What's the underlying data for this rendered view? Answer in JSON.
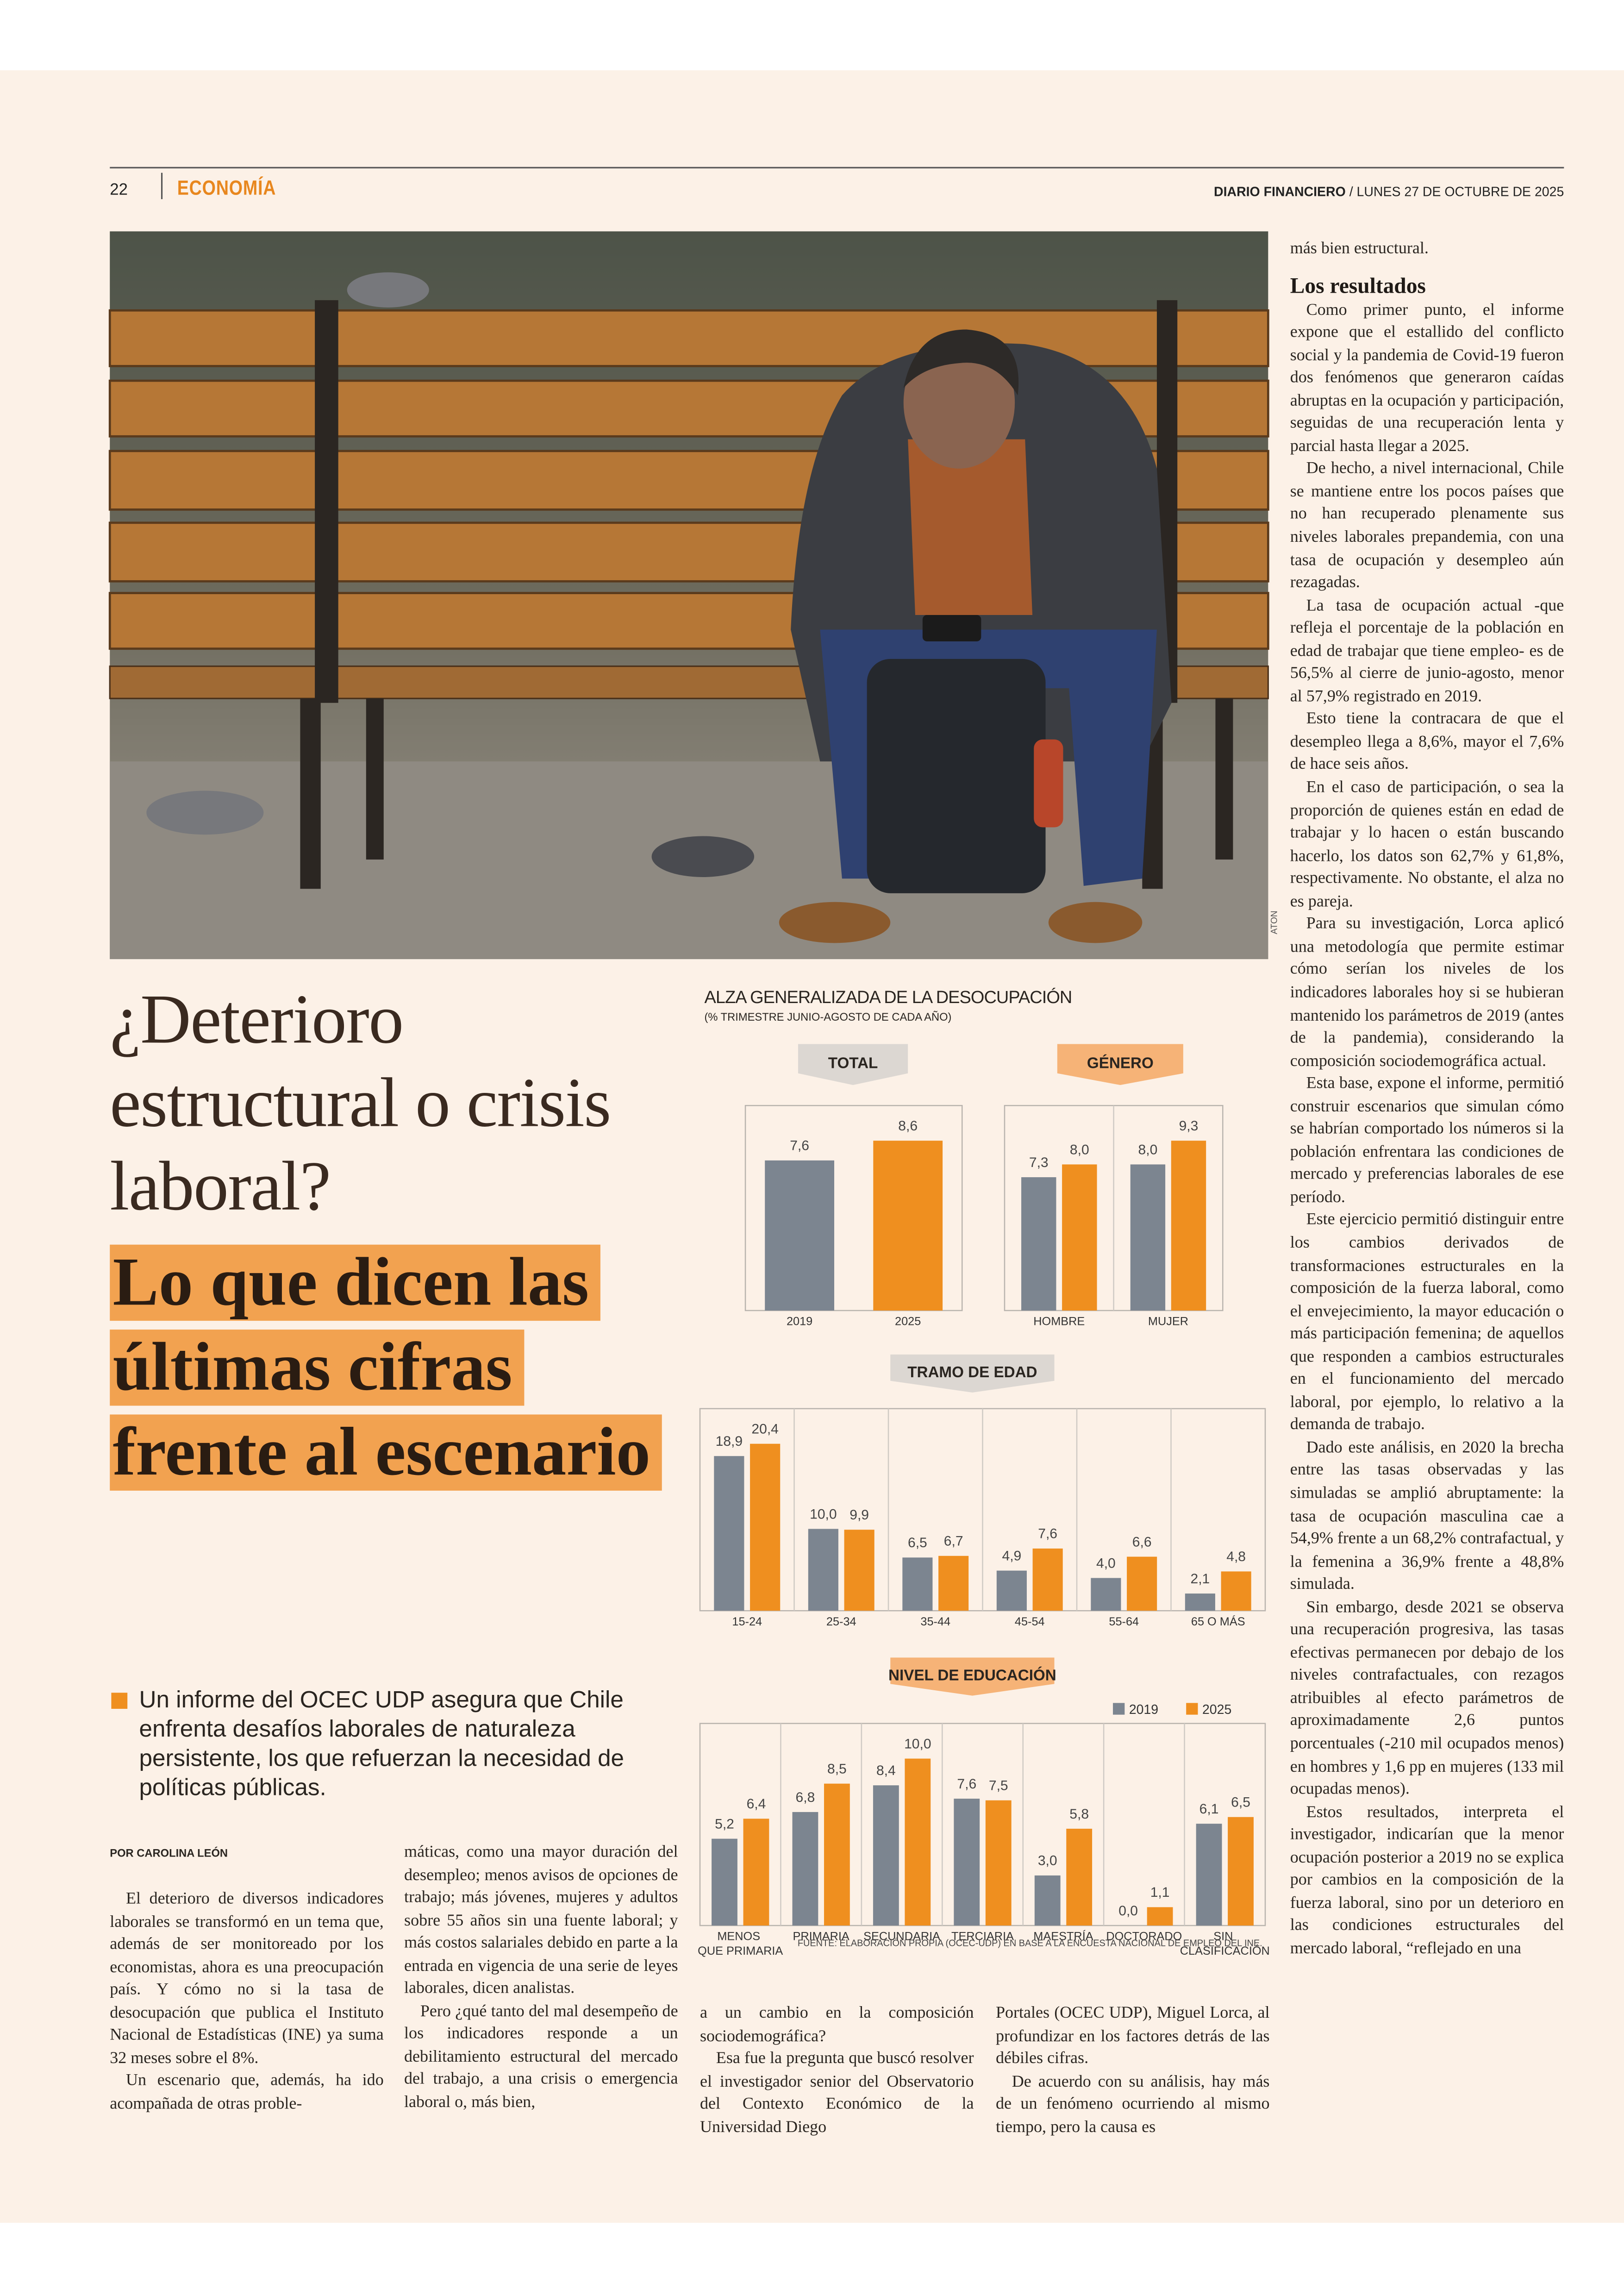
{
  "header": {
    "page": "22",
    "section": "ECONOMÍA",
    "publication": "DIARIO FINANCIERO",
    "date": "/ LUNES 27 DE OCTUBRE DE 2025"
  },
  "photo_credit": "ATON",
  "headline": {
    "question": "¿Deterioro estructural o crisis laboral?",
    "highlight": "Lo que dicen las últimas cifras frente al escenario"
  },
  "summary": "Un informe del OCEC UDP asegura que Chile enfrenta desafíos laborales de naturaleza persistente, los que refuerzan la necesidad de políticas públicas.",
  "byline": "POR CAROLINA LEÓN",
  "body": {
    "columns": [
      {
        "paragraphs": [
          "El deterioro de diversos indicadores laborales se transformó en un tema que, además de ser monitoreado por los economistas, ahora es una preocupación país. Y cómo no si la tasa de desocupación que publica el Instituto Nacional de Estadísticas (INE) ya suma 32 meses sobre el 8%.",
          "Un escenario que, además, ha ido acompañada de otras proble-"
        ]
      },
      {
        "continued": "máticas, como una mayor duración del desempleo; menos avisos de opciones de trabajo; más jóvenes, mujeres y adultos sobre 55 años sin una fuente laboral; y más costos salariales debido en parte a la entrada en vigencia de una serie de leyes laborales, dicen analistas.",
        "paragraphs": [
          "Pero ¿qué tanto del mal desempeño de los indicadores responde a un debilitamiento estructural del mercado del trabajo, a una crisis o emergencia laboral o, más bien,"
        ]
      },
      {
        "continued": "a un cambio en la composición sociodemográfica?",
        "paragraphs": [
          "Esa fue la pregunta que buscó resolver el investigador senior del Observatorio del Contexto Económico de la Universidad Diego"
        ]
      },
      {
        "continued": "Portales (OCEC UDP), Miguel Lorca, al profundizar en los factores detrás de las débiles cifras.",
        "paragraphs": [
          "De acuerdo con su análisis, hay más de un fenómeno ocurriendo al mismo tiempo, pero la causa es"
        ]
      },
      {
        "continued": "más bien estructural.",
        "heading": "Los resultados",
        "paragraphs": [
          "Como primer punto, el informe expone que el estallido del conflicto social y la pandemia de Covid-19 fueron dos fenómenos que generaron caídas abruptas en la ocupación y participación, seguidas de una recuperación lenta y parcial hasta llegar a 2025.",
          "De hecho, a nivel internacional, Chile se mantiene entre los pocos países que no han recuperado plenamente sus niveles laborales prepandemia, con una tasa de ocupación y desempleo aún rezagadas.",
          "La tasa de ocupación actual -que refleja el porcentaje de la población en edad de trabajar que tiene empleo- es de 56,5% al cierre de junio-agosto, menor al 57,9% registrado en 2019.",
          "Esto tiene la contracara de que el desempleo llega a 8,6%, mayor el 7,6% de hace seis años.",
          "En el caso de participación, o sea la proporción de quienes están en edad de trabajar y lo hacen o están buscando hacerlo, los datos son 62,7% y 61,8%, respectivamente. No obstante, el alza no es pareja.",
          "Para su investigación, Lorca aplicó una metodología que permite estimar cómo serían los niveles de los indicadores laborales hoy si se hubieran mantenido los parámetros de 2019 (antes de la pandemia), considerando la composición sociodemográfica actual.",
          "Esta base, expone el informe, permitió construir escenarios que simulan cómo se habrían comportado los números si la población enfrentara las condiciones de mercado y preferencias laborales de ese período.",
          "Este ejercicio permitió distinguir entre los cambios derivados de transformaciones estructurales en la composición de la fuerza laboral, como el envejecimiento, la mayor educación o más participación femenina; de aquellos que responden a cambios estructurales en el funcionamiento del mercado laboral, por ejemplo, lo relativo a la demanda de trabajo.",
          "Dado este análisis, en 2020 la brecha entre las tasas observadas y las simuladas se amplió abruptamente: la tasa de ocupación masculina cae a 54,9% frente a un 68,2% contrafactual, y la femenina a 36,9% frente a 48,8% simulada.",
          "Sin embargo, desde 2021 se observa una recuperación progresiva, las tasas efectivas permanecen por debajo de los niveles contrafactuales, con rezagos atribuibles al efecto parámetros de aproximadamente 2,6 puntos porcentuales (-210 mil ocupados menos) en hombres y 1,6 pp en mujeres (133 mil ocupadas menos).",
          "Estos resultados, interpreta el investigador, indicarían que la menor ocupación posterior a 2019 no se explica por cambios en la composición de la fuerza laboral, sino por un deterioro en las condiciones estructurales del mercado laboral, “reflejado en una"
        ]
      }
    ]
  },
  "chart_data": [
    {
      "type": "bar",
      "title": "ALZA GENERALIZADA DE LA DESOCUPACIÓN",
      "subtitle": "(% TRIMESTRE JUNIO-AGOSTO DE CADA AÑO)",
      "panel_title": "TOTAL",
      "categories": [
        "2019",
        "2025"
      ],
      "values": [
        7.6,
        8.6
      ],
      "value_labels": [
        "7,6",
        "8,6"
      ],
      "colors": [
        "#7c8590",
        "#ef8f1f"
      ]
    },
    {
      "type": "grouped_bar",
      "panel_title": "GÉNERO",
      "categories": [
        "HOMBRE",
        "MUJER"
      ],
      "series": [
        {
          "color": "#7c8590",
          "values": [
            7.3,
            8.0
          ],
          "value_labels": [
            "7,3",
            "8,0"
          ]
        },
        {
          "color": "#ef8f1f",
          "values": [
            8.0,
            9.3
          ],
          "value_labels": [
            "8,0",
            "9,3"
          ]
        }
      ]
    },
    {
      "type": "grouped_bar",
      "panel_title": "TRAMO DE EDAD",
      "categories": [
        "15-24",
        "25-34",
        "35-44",
        "45-54",
        "55-64",
        "65 O MÁS"
      ],
      "series": [
        {
          "color": "#7c8590",
          "values": [
            18.9,
            10.0,
            6.5,
            4.9,
            4.0,
            2.1
          ],
          "value_labels": [
            "18,9",
            "10,0",
            "6,5",
            "4,9",
            "4,0",
            "2,1"
          ]
        },
        {
          "color": "#ef8f1f",
          "values": [
            20.4,
            9.9,
            6.7,
            7.6,
            6.6,
            4.8
          ],
          "value_labels": [
            "20,4",
            "9,9",
            "6,7",
            "7,6",
            "6,6",
            "4,8"
          ]
        }
      ]
    },
    {
      "type": "grouped_bar",
      "panel_title": "NIVEL DE EDUCACIÓN",
      "categories": [
        "MENOS QUE PRIMARIA",
        "PRIMARIA",
        "SECUNDARIA",
        "TERCIARIA",
        "MAESTRÍA",
        "DOCTORADO",
        "SIN CLASIFICACIÓN"
      ],
      "series": [
        {
          "name": "2019",
          "color": "#7c8590",
          "values": [
            5.2,
            6.8,
            8.4,
            7.6,
            3.0,
            0.0,
            6.1
          ],
          "value_labels": [
            "5,2",
            "6,8",
            "8,4",
            "7,6",
            "3,0",
            "0,0",
            "6,1"
          ]
        },
        {
          "name": "2025",
          "color": "#ef8f1f",
          "values": [
            6.4,
            8.5,
            10.0,
            7.5,
            5.8,
            1.1,
            6.5
          ],
          "value_labels": [
            "6,4",
            "8,5",
            "10,0",
            "7,5",
            "5,8",
            "1,1",
            "6,5"
          ]
        }
      ],
      "legend": "top-right",
      "source": "FUENTE: ELABORACIÓN PROPIA (OCEC-UDP) EN BASE A LA ENCUESTA NACIONAL DE EMPLEO DEL INE."
    }
  ]
}
